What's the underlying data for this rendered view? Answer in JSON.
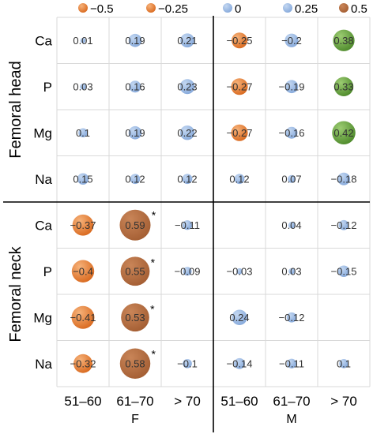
{
  "chart_data": {
    "type": "bubble-matrix",
    "legend": {
      "placement": "top",
      "entries": [
        {
          "label": "−0.5",
          "value": -0.5
        },
        {
          "label": "−0.25",
          "value": -0.25
        },
        {
          "label": "0",
          "value": 0
        },
        {
          "label": "0.25",
          "value": 0.25
        },
        {
          "label": "0.5",
          "value": 0.5
        }
      ]
    },
    "row_groups": [
      {
        "name": "Femoral head",
        "rows": [
          "Ca",
          "P",
          "Mg",
          "Na"
        ]
      },
      {
        "name": "Femoral neck",
        "rows": [
          "Ca",
          "P",
          "Mg",
          "Na"
        ]
      }
    ],
    "column_groups": [
      {
        "name": "F",
        "columns": [
          "51–60",
          "61–70",
          "> 70"
        ]
      },
      {
        "name": "M",
        "columns": [
          "51–60",
          "61–70",
          "> 70"
        ]
      }
    ],
    "cells": [
      [
        {
          "label": "0.01",
          "value": 0.01
        },
        {
          "label": "0.19",
          "value": 0.19
        },
        {
          "label": "0.21",
          "value": 0.21
        },
        {
          "label": "−0.25",
          "value": -0.25
        },
        {
          "label": "−0.2",
          "value": -0.2
        },
        {
          "label": "0.38",
          "value": 0.38
        }
      ],
      [
        {
          "label": "0.03",
          "value": 0.03
        },
        {
          "label": "0.16",
          "value": 0.16
        },
        {
          "label": "0.23",
          "value": 0.23
        },
        {
          "label": "−0.27",
          "value": -0.27
        },
        {
          "label": "−0.19",
          "value": -0.19
        },
        {
          "label": "0.33",
          "value": 0.33
        }
      ],
      [
        {
          "label": "0.1",
          "value": 0.1
        },
        {
          "label": "0.19",
          "value": 0.19
        },
        {
          "label": "0.22",
          "value": 0.22
        },
        {
          "label": "−0.27",
          "value": -0.27
        },
        {
          "label": "−0.16",
          "value": -0.16
        },
        {
          "label": "0.42",
          "value": 0.42
        }
      ],
      [
        {
          "label": "0.15",
          "value": 0.15
        },
        {
          "label": "0.12",
          "value": 0.12
        },
        {
          "label": "0.12",
          "value": 0.12
        },
        {
          "label": "0.12",
          "value": 0.12
        },
        {
          "label": "0.07",
          "value": 0.07
        },
        {
          "label": "−0.18",
          "value": -0.18
        }
      ],
      [
        {
          "label": "−0.37",
          "value": -0.37
        },
        {
          "label": "0.59",
          "value": 0.59,
          "significant": true
        },
        {
          "label": "−0.11",
          "value": -0.11
        },
        null,
        {
          "label": "0.04",
          "value": 0.04
        },
        {
          "label": "−0.12",
          "value": -0.12
        }
      ],
      [
        {
          "label": "−0.4",
          "value": -0.4
        },
        {
          "label": "0.55",
          "value": 0.55,
          "significant": true
        },
        {
          "label": "−0.09",
          "value": -0.09
        },
        {
          "label": "−0.03",
          "value": -0.03
        },
        {
          "label": "0.03",
          "value": 0.03
        },
        {
          "label": "−0.15",
          "value": -0.15
        }
      ],
      [
        {
          "label": "−0.41",
          "value": -0.41
        },
        {
          "label": "0.53",
          "value": 0.53,
          "significant": true
        },
        null,
        {
          "label": "0.24",
          "value": 0.24
        },
        {
          "label": "−0.12",
          "value": -0.12
        },
        null
      ],
      [
        {
          "label": "−0.32",
          "value": -0.32
        },
        {
          "label": "0.58",
          "value": 0.58,
          "significant": true
        },
        {
          "label": "−0.1",
          "value": -0.1
        },
        {
          "label": "−0.14",
          "value": -0.14
        },
        {
          "label": "−0.11",
          "value": -0.11
        },
        {
          "label": "0.1",
          "value": 0.1
        }
      ]
    ],
    "significance_marker": "*",
    "colors": {
      "negative": "#e07a2c",
      "negative_light": "#f2a060",
      "near_zero": "#9dbde6",
      "positive": "#5b9a35",
      "positive_light": "#8cc063",
      "strong": "#b06a3e"
    }
  }
}
